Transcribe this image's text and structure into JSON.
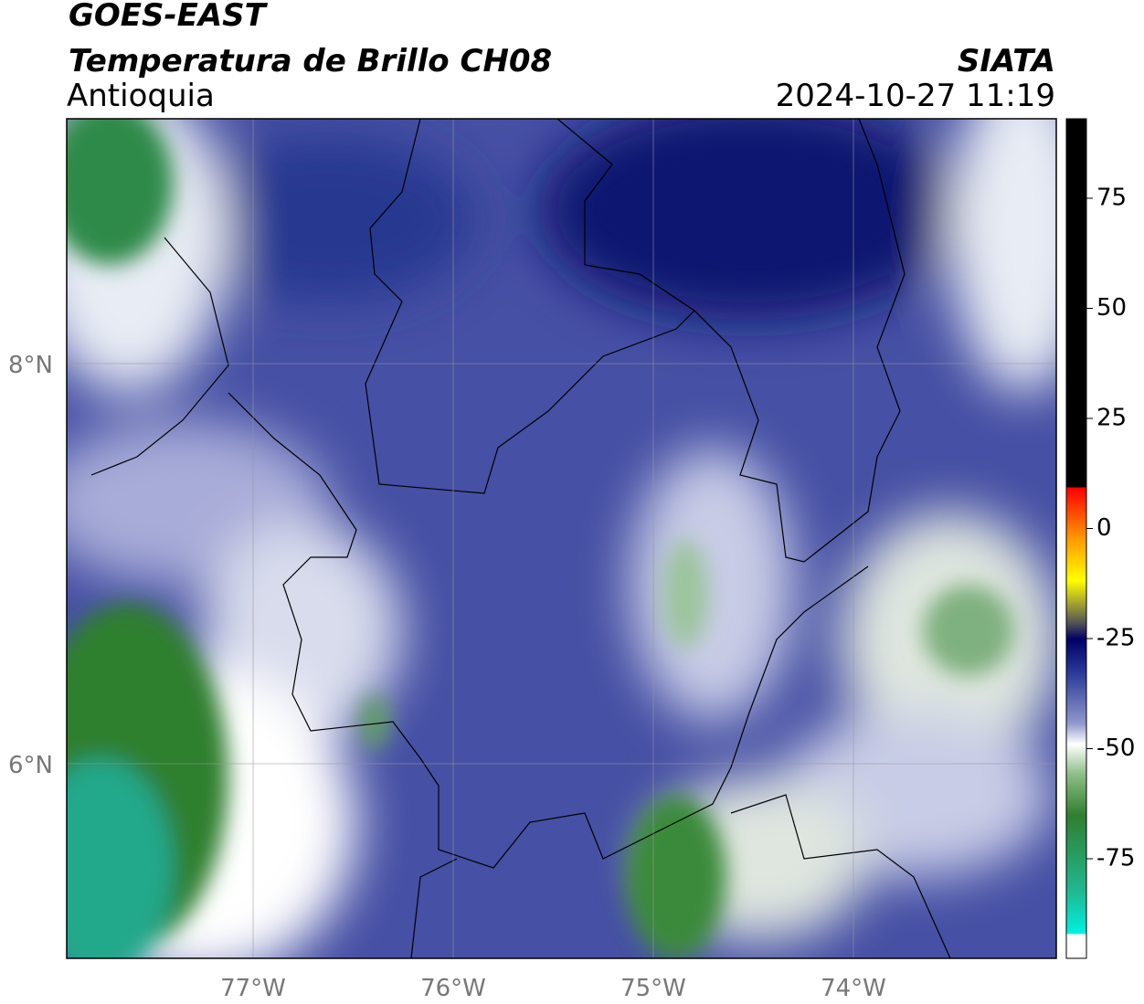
{
  "header": {
    "title": "GOES-EAST",
    "subtitle": "Temperatura de Brillo CH08",
    "region": "Antioquia",
    "source": "SIATA",
    "datetime": "2024-10-27 11:19"
  },
  "map": {
    "lon_labels": [
      "77°W",
      "76°W",
      "75°W",
      "74°W"
    ],
    "lat_labels": [
      "8°N",
      "6°N"
    ]
  },
  "colorbar": {
    "ticks": [
      75,
      50,
      25,
      0,
      -25,
      -50,
      -75
    ]
  }
}
